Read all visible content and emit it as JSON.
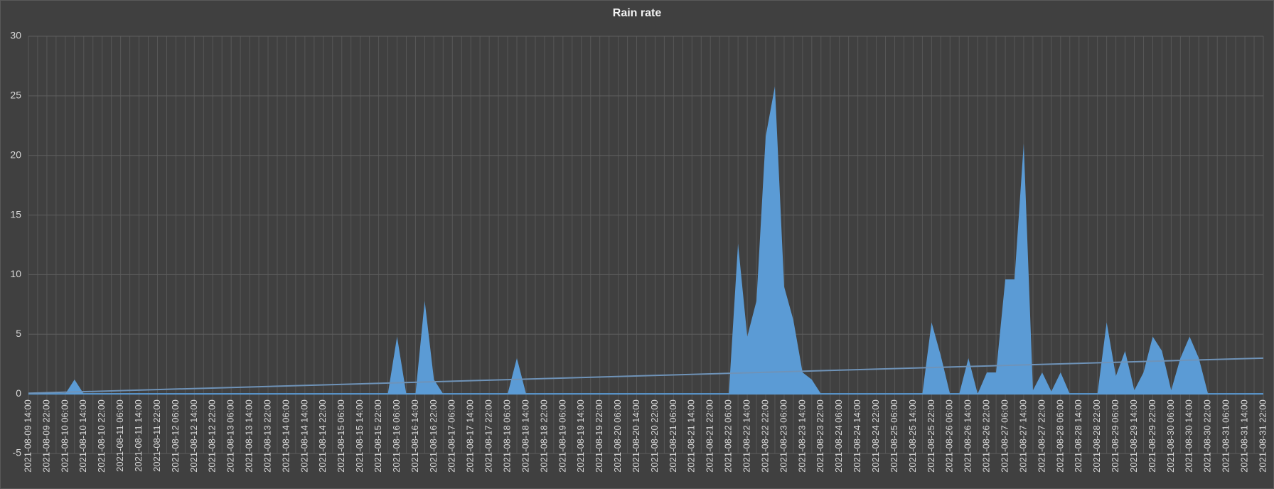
{
  "chart_data": {
    "type": "area",
    "title": "Rain rate",
    "categories": [
      "2021-08-09 14:00",
      null,
      "2021-08-09 22:00",
      null,
      "2021-08-10 06:00",
      null,
      "2021-08-10 14:00",
      null,
      "2021-08-10 22:00",
      null,
      "2021-08-11 06:00",
      null,
      "2021-08-11 14:00",
      null,
      "2021-08-11 22:00",
      null,
      "2021-08-12 06:00",
      null,
      "2021-08-12 14:00",
      null,
      "2021-08-12 22:00",
      null,
      "2021-08-13 06:00",
      null,
      "2021-08-13 14:00",
      null,
      "2021-08-13 22:00",
      null,
      "2021-08-14 06:00",
      null,
      "2021-08-14 14:00",
      null,
      "2021-08-14 22:00",
      null,
      "2021-08-15 06:00",
      null,
      "2021-08-15 14:00",
      null,
      "2021-08-15 22:00",
      null,
      "2021-08-16 06:00",
      null,
      "2021-08-16 14:00",
      null,
      "2021-08-16 22:00",
      null,
      "2021-08-17 06:00",
      null,
      "2021-08-17 14:00",
      null,
      "2021-08-17 22:00",
      null,
      "2021-08-18 06:00",
      null,
      "2021-08-18 14:00",
      null,
      "2021-08-18 22:00",
      null,
      "2021-08-19 06:00",
      null,
      "2021-08-19 14:00",
      null,
      "2021-08-19 22:00",
      null,
      "2021-08-20 06:00",
      null,
      "2021-08-20 14:00",
      null,
      "2021-08-20 22:00",
      null,
      "2021-08-21 06:00",
      null,
      "2021-08-21 14:00",
      null,
      "2021-08-21 22:00",
      null,
      "2021-08-22 06:00",
      null,
      "2021-08-22 14:00",
      null,
      "2021-08-22 22:00",
      null,
      "2021-08-23 06:00",
      null,
      "2021-08-23 14:00",
      null,
      "2021-08-23 22:00",
      null,
      "2021-08-24 06:00",
      null,
      "2021-08-24 14:00",
      null,
      "2021-08-24 22:00",
      null,
      "2021-08-25 06:00",
      null,
      "2021-08-25 14:00",
      null,
      "2021-08-25 22:00",
      null,
      "2021-08-26 06:00",
      null,
      "2021-08-26 14:00",
      null,
      "2021-08-26 22:00",
      null,
      "2021-08-27 06:00",
      null,
      "2021-08-27 14:00",
      null,
      "2021-08-27 22:00",
      null,
      "2021-08-28 06:00",
      null,
      "2021-08-28 14:00",
      null,
      "2021-08-28 22:00",
      null,
      "2021-08-29 06:00",
      null,
      "2021-08-29 14:00",
      null,
      "2021-08-29 22:00",
      null,
      "2021-08-30 06:00",
      null,
      "2021-08-30 14:00",
      null,
      "2021-08-30 22:00",
      null,
      "2021-08-31 06:00",
      null,
      "2021-08-31 14:00",
      null,
      "2021-08-31 22:00"
    ],
    "values": [
      0,
      0,
      0,
      0,
      0,
      1.2,
      0,
      0,
      0,
      0,
      0,
      0,
      0,
      0,
      0,
      0,
      0,
      0,
      0,
      0,
      0,
      0,
      0,
      0,
      0,
      0,
      0,
      0,
      0,
      0,
      0,
      0,
      0,
      0,
      0,
      0,
      0,
      0,
      0,
      0,
      4.8,
      0,
      0,
      7.8,
      1.2,
      0,
      0,
      0,
      0,
      0,
      0,
      0,
      0,
      3.0,
      0,
      0,
      0,
      0,
      0,
      0,
      0,
      0,
      0,
      0,
      0,
      0,
      0,
      0,
      0,
      0,
      0,
      0,
      0,
      0,
      0,
      0,
      0,
      12.6,
      4.8,
      7.8,
      21.6,
      25.8,
      9.0,
      6.2,
      1.8,
      1.2,
      0,
      0,
      0,
      0,
      0,
      0,
      0,
      0,
      0,
      0,
      0,
      0,
      6.0,
      3.2,
      0,
      0,
      3.0,
      0,
      1.8,
      1.8,
      9.6,
      9.6,
      21.0,
      0.3,
      1.8,
      0.2,
      1.8,
      0,
      0,
      0,
      0,
      6.0,
      1.5,
      3.6,
      0.3,
      1.8,
      4.8,
      3.6,
      0.3,
      3.0,
      4.8,
      3.0,
      0,
      0,
      0,
      0,
      0,
      0,
      0
    ],
    "color": "#5b9bd5",
    "trendline": {
      "start": 0.05,
      "end": 3.0,
      "color": "#6f93b8"
    },
    "ylim": [
      -5,
      30
    ],
    "yticks": [
      -5,
      0,
      5,
      10,
      15,
      20,
      25,
      30
    ],
    "grid": true
  }
}
